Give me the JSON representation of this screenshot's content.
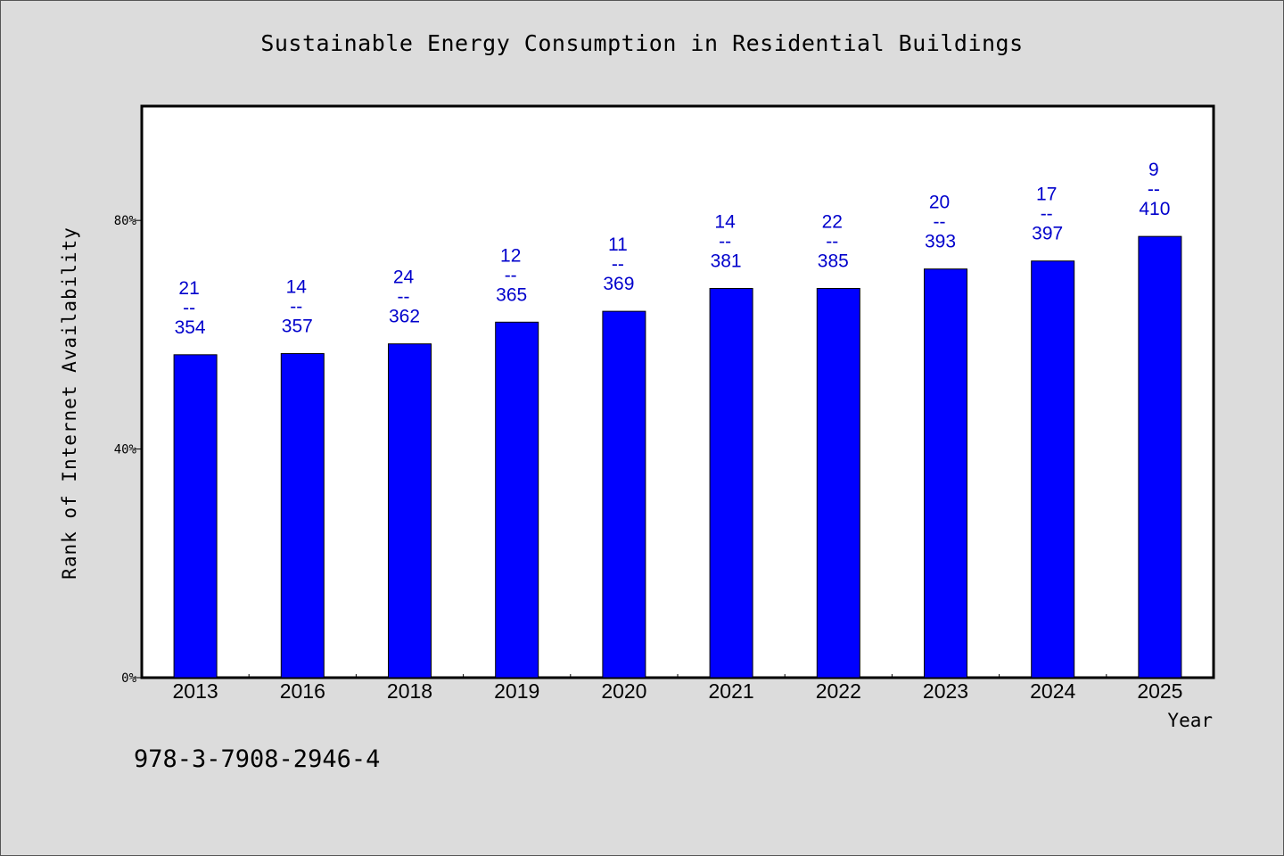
{
  "chart_data": {
    "type": "bar",
    "title": "Sustainable Energy Consumption in Residential Buildings",
    "xlabel": "Year",
    "ylabel": "Rank of Internet Availability",
    "categories": [
      "2013",
      "2016",
      "2018",
      "2019",
      "2020",
      "2021",
      "2022",
      "2023",
      "2024",
      "2025"
    ],
    "values": [
      56.5,
      56.7,
      58.4,
      62.2,
      64.1,
      68.1,
      68.1,
      71.5,
      72.9,
      77.2
    ],
    "rank_labels": [
      "21",
      "14",
      "24",
      "12",
      "11",
      "14",
      "22",
      "20",
      "17",
      "9"
    ],
    "total_labels": [
      "354",
      "357",
      "362",
      "365",
      "369",
      "381",
      "385",
      "393",
      "397",
      "410"
    ],
    "label_separator": "--",
    "ylim": [
      0,
      100
    ],
    "yticks": [
      0,
      40,
      80
    ],
    "ytick_labels": [
      "0%",
      "40%",
      "80%"
    ],
    "bar_color": "#0000ff",
    "label_color": "#0000cc",
    "grid": false,
    "legend": "none"
  },
  "footer": {
    "isbn": "978-3-7908-2946-4"
  }
}
